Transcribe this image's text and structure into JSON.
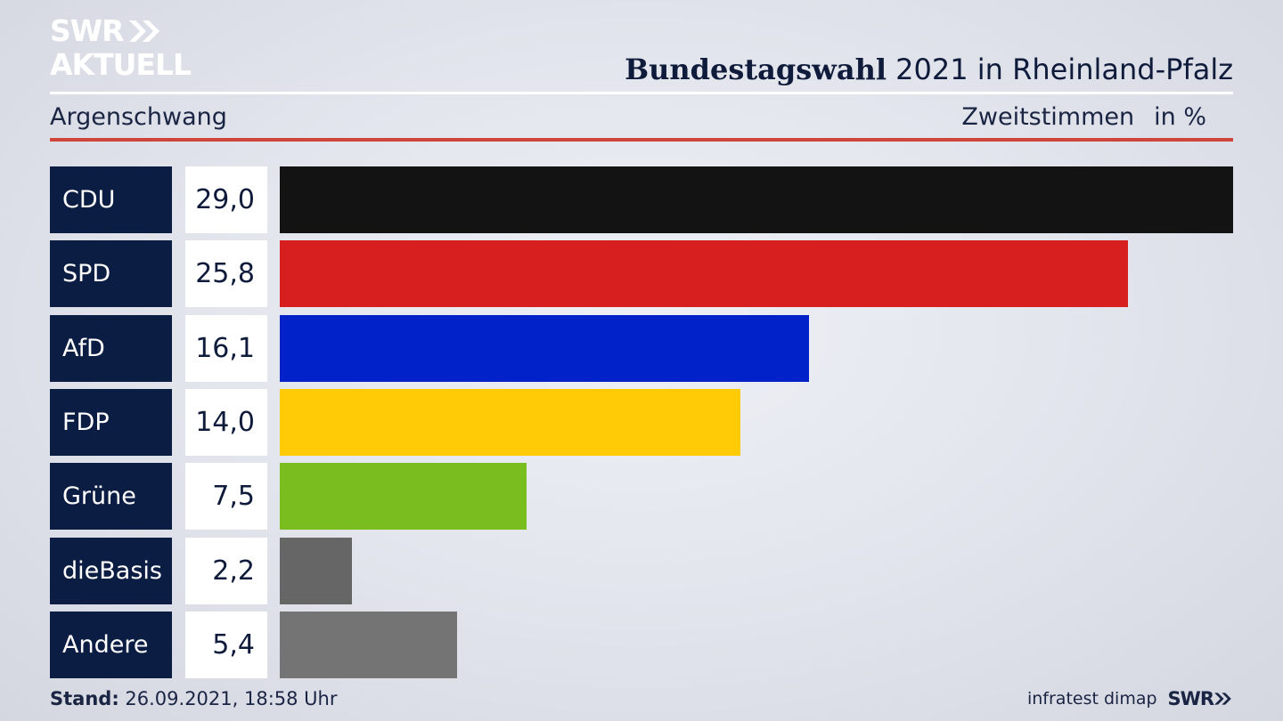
{
  "brand": {
    "line1": "SWR",
    "line2": "AKTUELL"
  },
  "header": {
    "title_bold": "Bundestagswahl",
    "title_rest": " 2021 in Rheinland-Pfalz",
    "subtitle": "Argenschwang",
    "metric": "Zweitstimmen",
    "unit": "in %"
  },
  "colors": {
    "accent_rule": "#d0453a",
    "label_box": "#0c1d44"
  },
  "chart_data": {
    "type": "bar",
    "orientation": "horizontal",
    "categories": [
      "CDU",
      "SPD",
      "AfD",
      "FDP",
      "Grüne",
      "dieBasis",
      "Andere"
    ],
    "values": [
      29.0,
      25.8,
      16.1,
      14.0,
      7.5,
      2.2,
      5.4
    ],
    "value_labels": [
      "29,0",
      "25,8",
      "16,1",
      "14,0",
      "7,5",
      "2,2",
      "5,4"
    ],
    "colors": [
      "#131313",
      "#d81f20",
      "#0022c8",
      "#ffcb06",
      "#79bd1f",
      "#666666",
      "#747474"
    ],
    "xlim": [
      0,
      29.0
    ]
  },
  "footer": {
    "stand_label": "Stand:",
    "stand_value": " 26.09.2021, 18:58 Uhr",
    "source": "infratest dimap",
    "brand": "SWR"
  }
}
